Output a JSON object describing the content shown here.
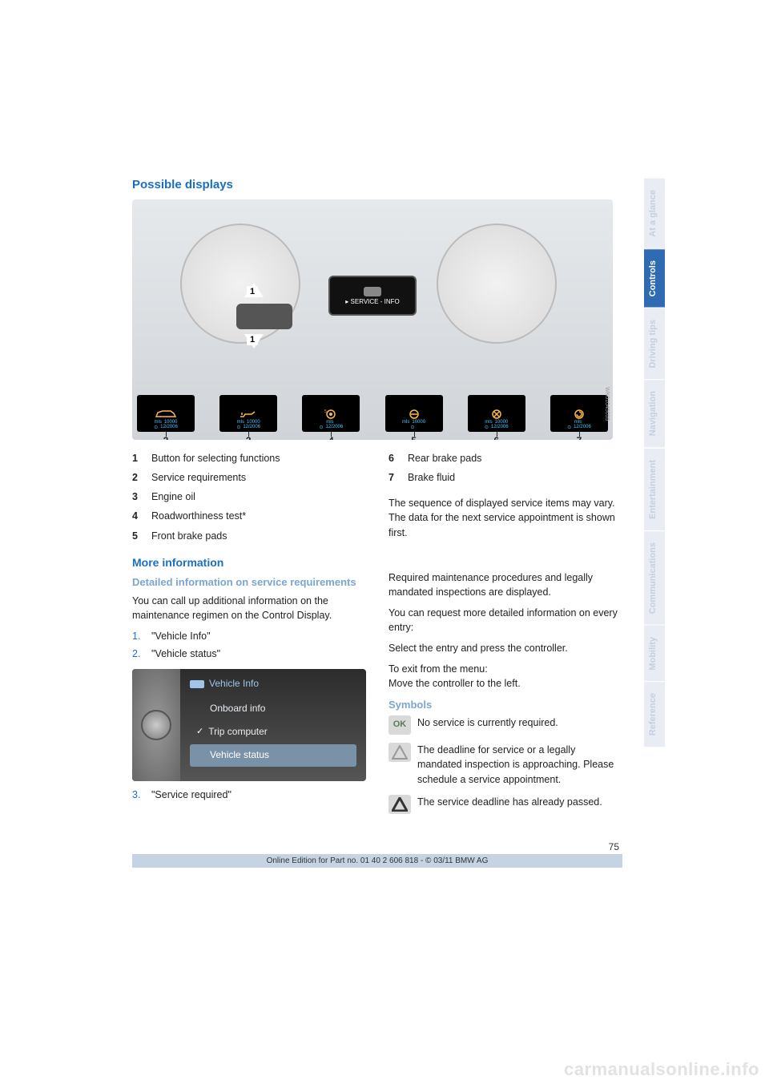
{
  "section_title": "Possible displays",
  "hero": {
    "center_label": "▸ SERVICE - INFO",
    "callout_1": "1",
    "wk_code": "WK01045055",
    "thumbs": [
      {
        "num": "2",
        "mls": "mls",
        "miles": "10000",
        "date": "12/2006",
        "icon": "car"
      },
      {
        "num": "3",
        "mls": "mls",
        "miles": "10000",
        "date": "12/2006",
        "icon": "oil"
      },
      {
        "num": "4",
        "mls": "mls",
        "miles": "",
        "date": "12/2006",
        "icon": "brake-front"
      },
      {
        "num": "5",
        "mls": "mls",
        "miles": "10000",
        "date": "",
        "icon": "brake-rear"
      },
      {
        "num": "6",
        "mls": "mls",
        "miles": "10000",
        "date": "12/2006",
        "icon": "brake"
      },
      {
        "num": "7",
        "mls": "mls",
        "miles": "",
        "date": "12/2006",
        "icon": "fluid"
      }
    ]
  },
  "left_list": [
    {
      "n": "1",
      "t": "Button for selecting functions"
    },
    {
      "n": "2",
      "t": "Service requirements"
    },
    {
      "n": "3",
      "t": "Engine oil"
    },
    {
      "n": "4",
      "t": "Roadworthiness test*"
    },
    {
      "n": "5",
      "t": "Front brake pads"
    }
  ],
  "right_list": [
    {
      "n": "6",
      "t": "Rear brake pads"
    },
    {
      "n": "7",
      "t": "Brake fluid"
    }
  ],
  "right_para": "The sequence of displayed service items may vary. The data for the next service appointment is shown first.",
  "more_info_title": "More information",
  "detailed_title": "Detailed information on service requirements",
  "detailed_para": "You can call up additional information on the maintenance regimen on the Control Display.",
  "steps_a": [
    {
      "on": "1.",
      "t": "\"Vehicle Info\""
    },
    {
      "on": "2.",
      "t": "\"Vehicle status\""
    }
  ],
  "menu": {
    "title": "Vehicle Info",
    "rows": [
      {
        "label": "Onboard info",
        "selected": false,
        "check": false
      },
      {
        "label": "Trip computer",
        "selected": false,
        "check": true
      },
      {
        "label": "Vehicle status",
        "selected": true,
        "check": false
      }
    ]
  },
  "steps_b": [
    {
      "on": "3.",
      "t": "\"Service required\""
    }
  ],
  "right_col": {
    "p1": "Required maintenance procedures and legally mandated inspections are displayed.",
    "p2": "You can request more detailed information on every entry:",
    "p3": "Select the entry and press the controller.",
    "p4a": "To exit from the menu:",
    "p4b": "Move the controller to the left.",
    "symbols_title": "Symbols",
    "symbols": [
      {
        "icon": "ok",
        "text": "No service is currently required."
      },
      {
        "icon": "tri-grey",
        "text": "The deadline for service or a legally mandated inspection is approaching. Please schedule a service appointment."
      },
      {
        "icon": "tri-bold",
        "text": "The service deadline has already passed."
      }
    ]
  },
  "page_number": "75",
  "footer": "Online Edition for Part no. 01 40 2 606 818 - © 03/11 BMW AG",
  "tabs": [
    {
      "label": "At a glance",
      "active": false
    },
    {
      "label": "Controls",
      "active": true
    },
    {
      "label": "Driving tips",
      "active": false
    },
    {
      "label": "Navigation",
      "active": false
    },
    {
      "label": "Entertainment",
      "active": false
    },
    {
      "label": "Communications",
      "active": false
    },
    {
      "label": "Mobility",
      "active": false
    },
    {
      "label": "Reference",
      "active": false
    }
  ],
  "watermark": "carmanualsonline.info",
  "colors": {
    "link": "#1a6fc4",
    "sub": "#7aa6cf",
    "tab_active_bg": "#2f6bb3",
    "footer_bg": "#c5d3e2"
  }
}
